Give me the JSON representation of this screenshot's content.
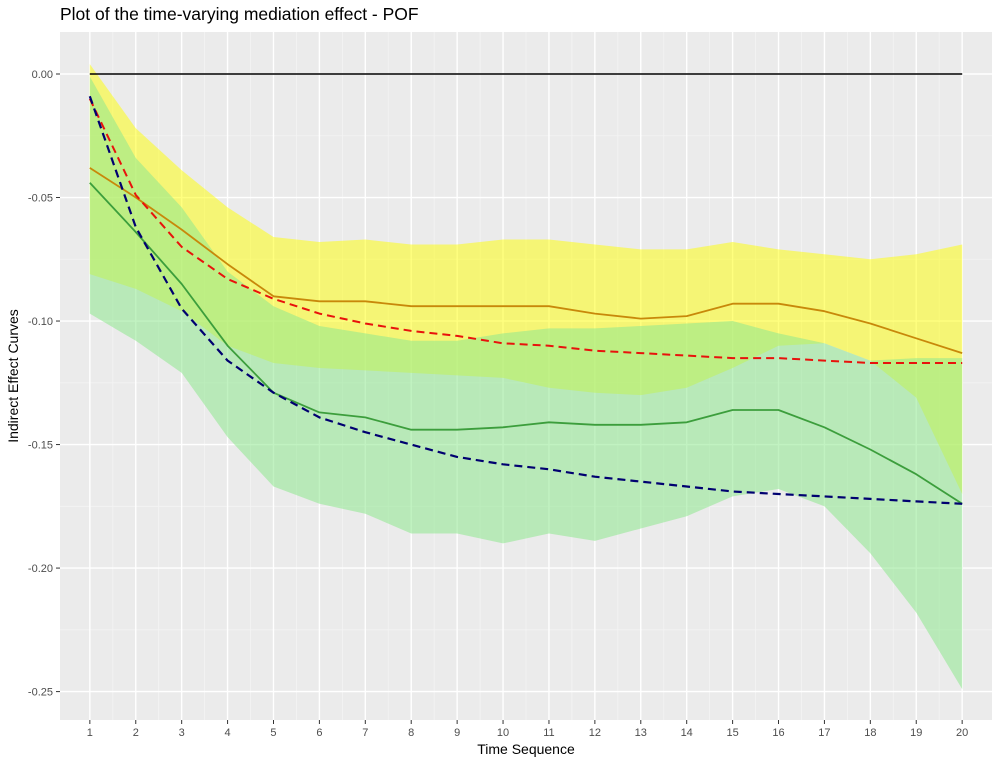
{
  "chart_data": {
    "type": "line",
    "title": "Plot of the time-varying mediation effect - POF",
    "xlabel": "Time Sequence",
    "ylabel": "Indirect Effect Curves",
    "xlim": [
      0.35,
      20.65
    ],
    "ylim": [
      -0.2615,
      0.017
    ],
    "x_ticks": [
      1,
      2,
      3,
      4,
      5,
      6,
      7,
      8,
      9,
      10,
      11,
      12,
      13,
      14,
      15,
      16,
      17,
      18,
      19,
      20
    ],
    "y_ticks": [
      0.0,
      -0.05,
      -0.1,
      -0.15,
      -0.2,
      -0.25
    ],
    "y_tick_labels": [
      "0.00",
      "-0.05",
      "-0.10",
      "-0.15",
      "-0.20",
      "-0.25"
    ],
    "grid": true,
    "x": [
      1,
      2,
      3,
      4,
      5,
      6,
      7,
      8,
      9,
      10,
      11,
      12,
      13,
      14,
      15,
      16,
      17,
      18,
      19,
      20
    ],
    "bands": [
      {
        "id": "band-yellow",
        "color": "#ffff00",
        "opacity": 0.5,
        "upper": [
          0.004,
          -0.022,
          -0.039,
          -0.054,
          -0.066,
          -0.068,
          -0.067,
          -0.069,
          -0.069,
          -0.067,
          -0.067,
          -0.069,
          -0.071,
          -0.071,
          -0.068,
          -0.071,
          -0.073,
          -0.075,
          -0.073,
          -0.069
        ],
        "lower": [
          -0.081,
          -0.087,
          -0.096,
          -0.11,
          -0.117,
          -0.119,
          -0.12,
          -0.121,
          -0.122,
          -0.123,
          -0.127,
          -0.129,
          -0.13,
          -0.127,
          -0.119,
          -0.11,
          -0.109,
          -0.116,
          -0.131,
          -0.17
        ]
      },
      {
        "id": "band-green",
        "color": "#8ee88e",
        "opacity": 0.55,
        "upper": [
          -0.001,
          -0.034,
          -0.054,
          -0.08,
          -0.094,
          -0.102,
          -0.105,
          -0.108,
          -0.108,
          -0.105,
          -0.103,
          -0.103,
          -0.102,
          -0.101,
          -0.1,
          -0.105,
          -0.109,
          -0.116,
          -0.115,
          -0.115
        ],
        "lower": [
          -0.097,
          -0.108,
          -0.121,
          -0.147,
          -0.167,
          -0.174,
          -0.178,
          -0.186,
          -0.186,
          -0.19,
          -0.186,
          -0.189,
          -0.184,
          -0.179,
          -0.171,
          -0.168,
          -0.175,
          -0.194,
          -0.218,
          -0.249
        ]
      }
    ],
    "series": [
      {
        "id": "zero-line",
        "color": "#000000",
        "dash": "solid",
        "width": 1.6,
        "values": [
          0,
          0,
          0,
          0,
          0,
          0,
          0,
          0,
          0,
          0,
          0,
          0,
          0,
          0,
          0,
          0,
          0,
          0,
          0,
          0
        ]
      },
      {
        "id": "curve-orange-solid",
        "color": "#c8880a",
        "dash": "solid",
        "width": 1.8,
        "values": [
          -0.038,
          -0.05,
          -0.063,
          -0.077,
          -0.09,
          -0.092,
          -0.092,
          -0.094,
          -0.094,
          -0.094,
          -0.094,
          -0.097,
          -0.099,
          -0.098,
          -0.093,
          -0.093,
          -0.096,
          -0.101,
          -0.107,
          -0.113
        ]
      },
      {
        "id": "curve-red-dashed",
        "color": "#e8120c",
        "dash": "dashed",
        "width": 2.0,
        "values": [
          -0.01,
          -0.049,
          -0.07,
          -0.083,
          -0.091,
          -0.097,
          -0.101,
          -0.104,
          -0.106,
          -0.109,
          -0.11,
          -0.112,
          -0.113,
          -0.114,
          -0.115,
          -0.115,
          -0.116,
          -0.117,
          -0.117,
          -0.117
        ]
      },
      {
        "id": "curve-green-solid",
        "color": "#3c9e3c",
        "dash": "solid",
        "width": 1.8,
        "values": [
          -0.044,
          -0.064,
          -0.085,
          -0.11,
          -0.129,
          -0.137,
          -0.139,
          -0.144,
          -0.144,
          -0.143,
          -0.141,
          -0.142,
          -0.142,
          -0.141,
          -0.136,
          -0.136,
          -0.143,
          -0.152,
          -0.162,
          -0.174
        ]
      },
      {
        "id": "curve-navy-dashed",
        "color": "#000070",
        "dash": "dashed",
        "width": 2.2,
        "values": [
          -0.009,
          -0.062,
          -0.095,
          -0.116,
          -0.129,
          -0.139,
          -0.145,
          -0.15,
          -0.155,
          -0.158,
          -0.16,
          -0.163,
          -0.165,
          -0.167,
          -0.169,
          -0.17,
          -0.171,
          -0.172,
          -0.173,
          -0.174
        ]
      }
    ]
  }
}
